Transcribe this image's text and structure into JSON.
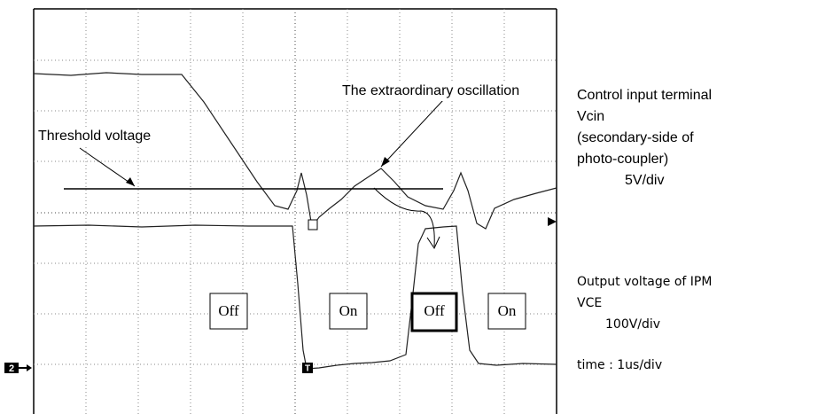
{
  "annotations": {
    "oscillation": "The extraordinary oscillation",
    "threshold": "Threshold voltage"
  },
  "states": [
    "Off",
    "On",
    "Off",
    "On"
  ],
  "channel_marker": "2",
  "trigger_marker": "T",
  "legend": {
    "vcin": [
      "Control input terminal",
      "Vcin",
      "(secondary-side of",
      "photo-coupler)",
      "5V/div"
    ],
    "vce": [
      "Output voltage of IPM",
      "VCE",
      "100V/div"
    ],
    "time": "time : 1us/div"
  }
}
